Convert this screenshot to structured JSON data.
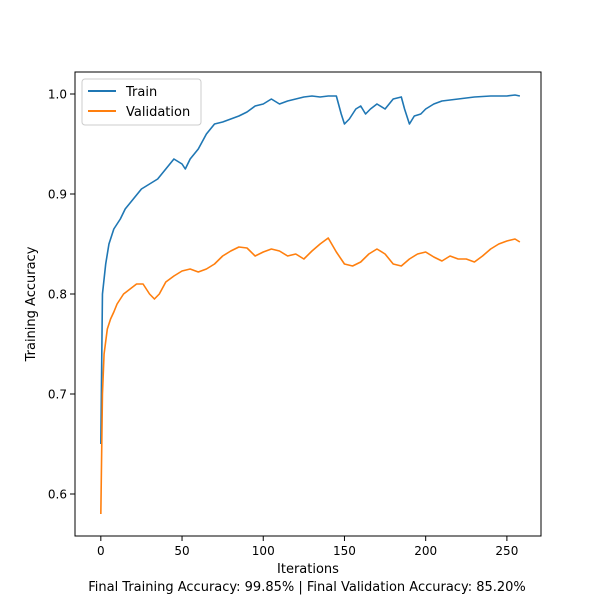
{
  "chart_data": {
    "type": "line",
    "xlabel": "Iterations",
    "ylabel": "Training Accuracy",
    "caption": "Final Training Accuracy: 99.85% | Final Validation Accuracy: 85.20%",
    "xlim": [
      -15.9,
      271
    ],
    "ylim": [
      0.558,
      1.022
    ],
    "xticks": [
      0,
      50,
      100,
      150,
      200,
      250
    ],
    "yticks": [
      0.6,
      0.7,
      0.8,
      0.9,
      1.0
    ],
    "xtick_labels": [
      "0",
      "50",
      "100",
      "150",
      "200",
      "250"
    ],
    "ytick_labels": [
      "0.6",
      "0.7",
      "0.8",
      "0.9",
      "1.0"
    ],
    "grid": false,
    "legend_position": "upper-left",
    "series": [
      {
        "name": "Train",
        "color": "#1f77b4",
        "points": [
          [
            0,
            0.65
          ],
          [
            1,
            0.8
          ],
          [
            3,
            0.83
          ],
          [
            5,
            0.85
          ],
          [
            8,
            0.865
          ],
          [
            12,
            0.875
          ],
          [
            15,
            0.885
          ],
          [
            20,
            0.895
          ],
          [
            25,
            0.905
          ],
          [
            30,
            0.91
          ],
          [
            35,
            0.915
          ],
          [
            40,
            0.925
          ],
          [
            45,
            0.935
          ],
          [
            50,
            0.93
          ],
          [
            52,
            0.925
          ],
          [
            55,
            0.935
          ],
          [
            60,
            0.945
          ],
          [
            65,
            0.96
          ],
          [
            70,
            0.97
          ],
          [
            75,
            0.972
          ],
          [
            80,
            0.975
          ],
          [
            85,
            0.978
          ],
          [
            90,
            0.982
          ],
          [
            95,
            0.988
          ],
          [
            100,
            0.99
          ],
          [
            105,
            0.995
          ],
          [
            110,
            0.99
          ],
          [
            115,
            0.993
          ],
          [
            120,
            0.995
          ],
          [
            125,
            0.997
          ],
          [
            130,
            0.998
          ],
          [
            135,
            0.997
          ],
          [
            140,
            0.998
          ],
          [
            145,
            0.998
          ],
          [
            148,
            0.98
          ],
          [
            150,
            0.97
          ],
          [
            153,
            0.975
          ],
          [
            157,
            0.985
          ],
          [
            160,
            0.988
          ],
          [
            163,
            0.98
          ],
          [
            166,
            0.985
          ],
          [
            170,
            0.99
          ],
          [
            175,
            0.985
          ],
          [
            180,
            0.995
          ],
          [
            185,
            0.997
          ],
          [
            187,
            0.985
          ],
          [
            190,
            0.97
          ],
          [
            193,
            0.978
          ],
          [
            197,
            0.98
          ],
          [
            200,
            0.985
          ],
          [
            205,
            0.99
          ],
          [
            210,
            0.993
          ],
          [
            220,
            0.995
          ],
          [
            230,
            0.997
          ],
          [
            240,
            0.998
          ],
          [
            250,
            0.998
          ],
          [
            255,
            0.999
          ],
          [
            258,
            0.998
          ]
        ]
      },
      {
        "name": "Validation",
        "color": "#ff7f0e",
        "points": [
          [
            0,
            0.58
          ],
          [
            1,
            0.7
          ],
          [
            2,
            0.74
          ],
          [
            4,
            0.765
          ],
          [
            6,
            0.775
          ],
          [
            8,
            0.782
          ],
          [
            10,
            0.79
          ],
          [
            14,
            0.8
          ],
          [
            18,
            0.805
          ],
          [
            22,
            0.81
          ],
          [
            26,
            0.81
          ],
          [
            30,
            0.8
          ],
          [
            33,
            0.795
          ],
          [
            36,
            0.8
          ],
          [
            40,
            0.812
          ],
          [
            45,
            0.818
          ],
          [
            50,
            0.823
          ],
          [
            55,
            0.825
          ],
          [
            60,
            0.822
          ],
          [
            65,
            0.825
          ],
          [
            70,
            0.83
          ],
          [
            75,
            0.838
          ],
          [
            80,
            0.843
          ],
          [
            85,
            0.847
          ],
          [
            90,
            0.846
          ],
          [
            95,
            0.838
          ],
          [
            100,
            0.842
          ],
          [
            105,
            0.845
          ],
          [
            110,
            0.843
          ],
          [
            115,
            0.838
          ],
          [
            120,
            0.84
          ],
          [
            125,
            0.835
          ],
          [
            130,
            0.843
          ],
          [
            135,
            0.85
          ],
          [
            140,
            0.856
          ],
          [
            145,
            0.842
          ],
          [
            150,
            0.83
          ],
          [
            155,
            0.828
          ],
          [
            160,
            0.832
          ],
          [
            165,
            0.84
          ],
          [
            170,
            0.845
          ],
          [
            175,
            0.84
          ],
          [
            180,
            0.83
          ],
          [
            185,
            0.828
          ],
          [
            190,
            0.835
          ],
          [
            195,
            0.84
          ],
          [
            200,
            0.842
          ],
          [
            205,
            0.837
          ],
          [
            210,
            0.833
          ],
          [
            215,
            0.838
          ],
          [
            220,
            0.835
          ],
          [
            225,
            0.835
          ],
          [
            230,
            0.832
          ],
          [
            235,
            0.838
          ],
          [
            240,
            0.845
          ],
          [
            245,
            0.85
          ],
          [
            250,
            0.853
          ],
          [
            255,
            0.855
          ],
          [
            258,
            0.852
          ]
        ]
      }
    ]
  }
}
